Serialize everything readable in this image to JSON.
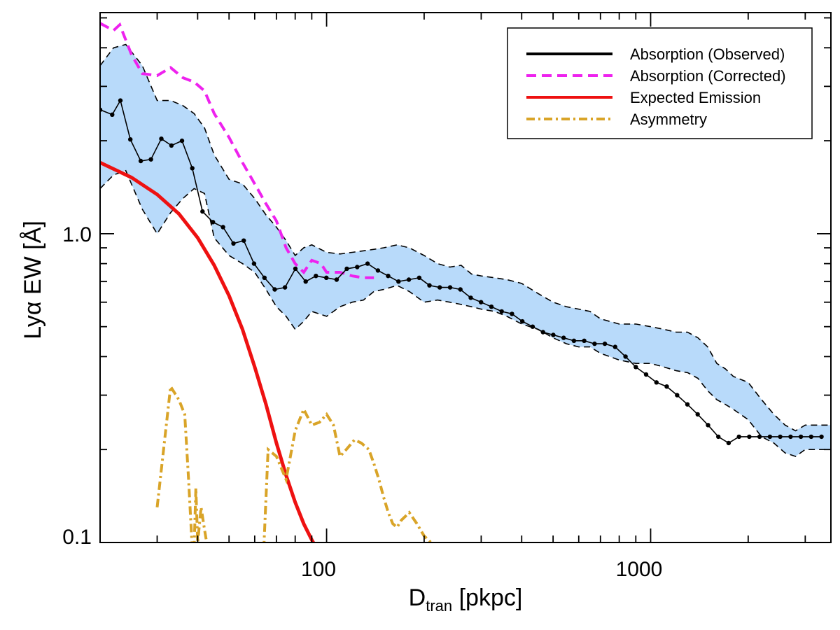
{
  "chart_data": {
    "type": "line",
    "title": "",
    "xlabel": {
      "main": "D",
      "sub": "tran",
      "rest": " [pkpc]"
    },
    "ylabel": "Lyα EW [Å]",
    "xscale": "log",
    "yscale": "log",
    "xlim": [
      20,
      3600
    ],
    "ylim": [
      0.1,
      5.2
    ],
    "xticks": [
      {
        "value": 100,
        "label": "100"
      },
      {
        "value": 1000,
        "label": "1000"
      }
    ],
    "yticks": [
      {
        "value": 0.1,
        "label": "0.1"
      },
      {
        "value": 1.0,
        "label": "1.0"
      }
    ],
    "grid": false,
    "legend_position": "top-right",
    "colors": {
      "observed": "#000000",
      "corrected": "#ee22ee",
      "emission": "#ee1111",
      "asymmetry": "#d9a428",
      "band_fill": "#b8dafa"
    },
    "legend": [
      {
        "key": "observed",
        "label": "Absorption (Observed)"
      },
      {
        "key": "corrected",
        "label": "Absorption (Corrected)"
      },
      {
        "key": "emission",
        "label": "Expected Emission"
      },
      {
        "key": "asymmetry",
        "label": "Asymmetry"
      }
    ],
    "series": [
      {
        "key": "observed",
        "name": "Absorption (Observed)",
        "x": [
          20.0,
          21.8,
          23.1,
          24.8,
          26.7,
          28.7,
          30.9,
          33.2,
          35.8,
          38.5,
          41.4,
          44.6,
          47.9,
          51.6,
          55.5,
          59.7,
          64.3,
          69.2,
          74.4,
          80.1,
          86.2,
          92.7,
          99.8,
          107.4,
          115.5,
          124.3,
          133.8,
          144.0,
          154.9,
          166.7,
          179.4,
          193.1,
          207.7,
          223.5,
          240.5,
          258.8,
          278.5,
          299.7,
          322.5,
          347.1,
          373.4,
          401.8,
          432.4,
          465.3,
          500.7,
          538.8,
          579.8,
          623.9,
          671.3,
          722.4,
          777.3,
          836.4,
          900.0,
          968.5,
          1042.2,
          1121.4,
          1206.7,
          1298.5,
          1397.2,
          1503.5,
          1617.8,
          1740.9,
          1873.3,
          2015.8,
          2169.1,
          2334.1,
          2511.6,
          2702.6,
          2908.1,
          3129.3,
          3367.3
        ],
        "y": [
          2.52,
          2.43,
          2.7,
          2.02,
          1.72,
          1.74,
          2.03,
          1.93,
          2.0,
          1.63,
          1.18,
          1.09,
          1.05,
          0.93,
          0.95,
          0.8,
          0.72,
          0.66,
          0.67,
          0.77,
          0.7,
          0.73,
          0.72,
          0.71,
          0.77,
          0.78,
          0.8,
          0.76,
          0.73,
          0.7,
          0.71,
          0.72,
          0.68,
          0.67,
          0.67,
          0.66,
          0.62,
          0.6,
          0.58,
          0.56,
          0.55,
          0.52,
          0.5,
          0.48,
          0.47,
          0.46,
          0.45,
          0.45,
          0.44,
          0.44,
          0.43,
          0.4,
          0.37,
          0.35,
          0.33,
          0.32,
          0.3,
          0.28,
          0.26,
          0.24,
          0.22,
          0.21,
          0.22,
          0.22,
          0.22,
          0.22,
          0.22,
          0.22,
          0.22,
          0.22,
          0.22
        ]
      },
      {
        "key": "corrected",
        "name": "Absorption (Corrected)",
        "x": [
          20,
          22,
          23,
          25,
          27,
          30,
          33,
          36,
          39,
          42,
          45,
          50,
          55,
          60,
          65,
          70,
          75,
          80,
          85,
          90,
          96,
          100,
          110,
          120,
          130,
          140
        ],
        "y": [
          4.8,
          4.55,
          4.75,
          3.8,
          3.3,
          3.25,
          3.45,
          3.2,
          3.1,
          2.9,
          2.45,
          2.05,
          1.7,
          1.45,
          1.25,
          1.1,
          0.9,
          0.8,
          0.75,
          0.82,
          0.8,
          0.75,
          0.75,
          0.73,
          0.72,
          0.72
        ]
      },
      {
        "key": "emission",
        "name": "Expected Emission",
        "x": [
          20,
          25,
          30,
          35,
          40,
          45,
          50,
          55,
          60,
          65,
          70,
          75,
          80,
          85,
          90,
          92
        ],
        "y": [
          1.7,
          1.52,
          1.34,
          1.16,
          0.97,
          0.79,
          0.63,
          0.49,
          0.37,
          0.28,
          0.21,
          0.165,
          0.135,
          0.115,
          0.102,
          0.098
        ]
      },
      {
        "key": "asymmetry",
        "name": "Asymmetry",
        "segments": [
          {
            "x": [
              30.0,
              33.0,
              35.0,
              36.5,
              37.5,
              38.5
            ],
            "y": [
              0.13,
              0.32,
              0.29,
              0.26,
              0.16,
              0.095
            ]
          },
          {
            "x": [
              39.0,
              39.5,
              40.0,
              41.0,
              42.0,
              43.0
            ],
            "y": [
              0.095,
              0.15,
              0.1,
              0.13,
              0.11,
              0.095
            ]
          },
          {
            "x": [
              64.0,
              66.0,
              70.0,
              75.0,
              80.0,
              85.0,
              90.0,
              95.0,
              100.0,
              105.0,
              110.0,
              115.0,
              122.0,
              128.0,
              135.0,
              140.0,
              145.0,
              150.0,
              155.0,
              160.0,
              165.0,
              170.0,
              180.0,
              190.0,
              200.0,
              210.0,
              220.0,
              225.0
            ],
            "y": [
              0.095,
              0.2,
              0.19,
              0.16,
              0.23,
              0.27,
              0.24,
              0.245,
              0.26,
              0.24,
              0.19,
              0.2,
              0.215,
              0.21,
              0.2,
              0.18,
              0.16,
              0.14,
              0.125,
              0.115,
              0.112,
              0.118,
              0.125,
              0.115,
              0.105,
              0.1,
              0.098,
              0.096
            ]
          }
        ]
      },
      {
        "key": "band",
        "name": "",
        "x": [
          20,
          22,
          24,
          27,
          30,
          33,
          36,
          39,
          42,
          45,
          50,
          55,
          60,
          65,
          70,
          75,
          80,
          85,
          90,
          100,
          110,
          120,
          130,
          140,
          150,
          165,
          180,
          200,
          220,
          240,
          260,
          280,
          300,
          330,
          360,
          400,
          450,
          500,
          550,
          600,
          650,
          700,
          800,
          900,
          1000,
          1100,
          1200,
          1300,
          1400,
          1500,
          1600,
          1700,
          1800,
          2000,
          2200,
          2400,
          2600,
          2800,
          3000,
          3200,
          3400,
          3600
        ],
        "lower": [
          1.4,
          1.55,
          1.6,
          1.2,
          1.0,
          1.17,
          1.3,
          1.4,
          1.35,
          0.97,
          0.85,
          0.8,
          0.75,
          0.66,
          0.58,
          0.54,
          0.49,
          0.52,
          0.56,
          0.54,
          0.58,
          0.6,
          0.61,
          0.65,
          0.66,
          0.68,
          0.65,
          0.6,
          0.61,
          0.6,
          0.59,
          0.58,
          0.57,
          0.56,
          0.54,
          0.51,
          0.49,
          0.46,
          0.44,
          0.43,
          0.43,
          0.41,
          0.39,
          0.38,
          0.38,
          0.37,
          0.36,
          0.355,
          0.34,
          0.31,
          0.29,
          0.28,
          0.27,
          0.25,
          0.22,
          0.21,
          0.195,
          0.19,
          0.2,
          0.2,
          0.2,
          0.2
        ],
        "upper": [
          3.5,
          4.0,
          4.1,
          3.5,
          2.7,
          2.7,
          2.6,
          2.45,
          2.2,
          1.8,
          1.5,
          1.45,
          1.3,
          1.15,
          1.05,
          0.95,
          0.85,
          0.9,
          0.92,
          0.87,
          0.86,
          0.87,
          0.88,
          0.89,
          0.9,
          0.92,
          0.9,
          0.85,
          0.8,
          0.78,
          0.79,
          0.74,
          0.73,
          0.72,
          0.71,
          0.69,
          0.64,
          0.6,
          0.58,
          0.57,
          0.56,
          0.53,
          0.51,
          0.51,
          0.5,
          0.49,
          0.48,
          0.48,
          0.46,
          0.43,
          0.38,
          0.365,
          0.345,
          0.33,
          0.29,
          0.26,
          0.24,
          0.23,
          0.24,
          0.24,
          0.24,
          0.24
        ]
      }
    ]
  }
}
